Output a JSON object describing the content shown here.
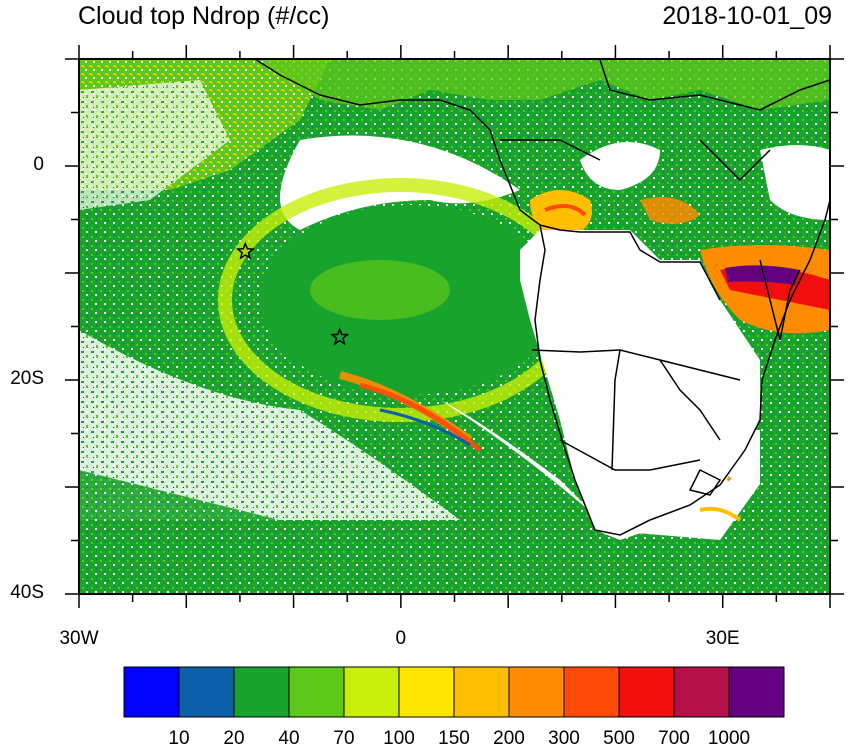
{
  "header": {
    "title": "Cloud top Ndrop (#/cc)",
    "timestamp": "2018-10-01_09"
  },
  "axes": {
    "lat_labels": [
      {
        "value": 0,
        "text": "0"
      },
      {
        "value": -20,
        "text": "20S"
      },
      {
        "value": -40,
        "text": "40S"
      }
    ],
    "lon_labels": [
      {
        "value": -30,
        "text": "30W"
      },
      {
        "value": 0,
        "text": "0"
      },
      {
        "value": 30,
        "text": "30E"
      }
    ],
    "lon_range": [
      -30,
      40
    ],
    "lat_range": [
      -40,
      10
    ]
  },
  "colorbar": {
    "colors": [
      "#0000ff",
      "#0c5fa8",
      "#18a32c",
      "#5ec81a",
      "#c8ef0a",
      "#ffe600",
      "#ffbf00",
      "#ff8c00",
      "#ff4a0a",
      "#f30e0e",
      "#b40f46",
      "#620080"
    ],
    "labels": [
      "10",
      "20",
      "40",
      "70",
      "100",
      "150",
      "200",
      "300",
      "500",
      "700",
      "1000"
    ]
  },
  "markers": [
    {
      "name": "star",
      "lon": -14.5,
      "lat": -8
    },
    {
      "name": "star",
      "lon": -5.7,
      "lat": -16
    }
  ]
}
